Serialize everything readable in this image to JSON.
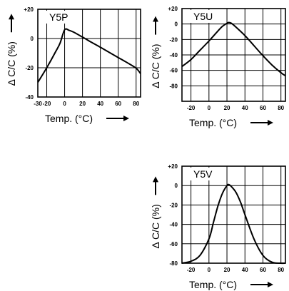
{
  "chart_data": [
    {
      "type": "line",
      "title": "Y5P",
      "xlabel": "Temp. (°C)",
      "ylabel": "Δ C/C (%)",
      "xlim": [
        -30,
        85
      ],
      "ylim": [
        -40,
        20
      ],
      "xticks": [
        -30,
        -20,
        0,
        20,
        40,
        60,
        80
      ],
      "xtick_labels": [
        "-30",
        "-20",
        "0",
        "20",
        "40",
        "60",
        "80"
      ],
      "yticks": [
        20,
        0,
        -20,
        -40
      ],
      "ytick_labels": [
        "+20",
        "0",
        "-20",
        "-40"
      ],
      "grid": true,
      "series": [
        {
          "x": [
            -30,
            -20,
            -10,
            -5,
            0,
            5,
            10,
            20,
            30,
            40,
            50,
            60,
            70,
            80,
            85
          ],
          "y": [
            -30,
            -20,
            -9,
            -3,
            6,
            5.6,
            4.4,
            1,
            -2.6,
            -6,
            -9.5,
            -13,
            -16.5,
            -20.3,
            -24
          ]
        }
      ]
    },
    {
      "type": "line",
      "title": "Y5U",
      "xlabel": "Temp. (°C)",
      "ylabel": "Δ C/C (%)",
      "xlim": [
        -30,
        85
      ],
      "ylim": [
        -100,
        20
      ],
      "xticks": [
        -20,
        0,
        20,
        40,
        60,
        80
      ],
      "xtick_labels": [
        "-20",
        "0",
        "20",
        "40",
        "60",
        "80"
      ],
      "yticks": [
        20,
        0,
        -20,
        -40,
        -60,
        -80
      ],
      "ytick_labels": [
        "+20",
        "0",
        "-20",
        "-40",
        "-60",
        "-80"
      ],
      "grid": true,
      "series": [
        {
          "x": [
            -30,
            -20,
            -10,
            0,
            10,
            15,
            20,
            22,
            25,
            30,
            40,
            50,
            60,
            70,
            80,
            85
          ],
          "y": [
            -55,
            -46,
            -34,
            -22,
            -9,
            -3,
            1,
            2,
            1,
            -4,
            -15,
            -28,
            -41,
            -53,
            -63,
            -67
          ]
        }
      ]
    },
    {
      "type": "line",
      "title": "Y5V",
      "xlabel": "Temp. (°C)",
      "ylabel": "Δ C/C (%)",
      "xlim": [
        -30,
        85
      ],
      "ylim": [
        -80,
        20
      ],
      "xticks": [
        -20,
        0,
        20,
        40,
        60,
        80
      ],
      "xtick_labels": [
        "-20",
        "0",
        "20",
        "40",
        "60",
        "80"
      ],
      "yticks": [
        20,
        0,
        -20,
        -40,
        -60,
        -80
      ],
      "ytick_labels": [
        "+20",
        "0",
        "-20",
        "-40",
        "-60",
        "-80"
      ],
      "grid": true,
      "series": [
        {
          "x": [
            -30,
            -20,
            -10,
            0,
            5,
            10,
            15,
            20,
            22,
            25,
            30,
            35,
            40,
            50,
            60,
            70,
            80,
            85
          ],
          "y": [
            -80,
            -78,
            -72,
            -55,
            -38,
            -21,
            -8,
            0,
            1,
            -1,
            -7,
            -17,
            -30,
            -55,
            -72,
            -79,
            -80,
            -80
          ]
        }
      ]
    }
  ]
}
